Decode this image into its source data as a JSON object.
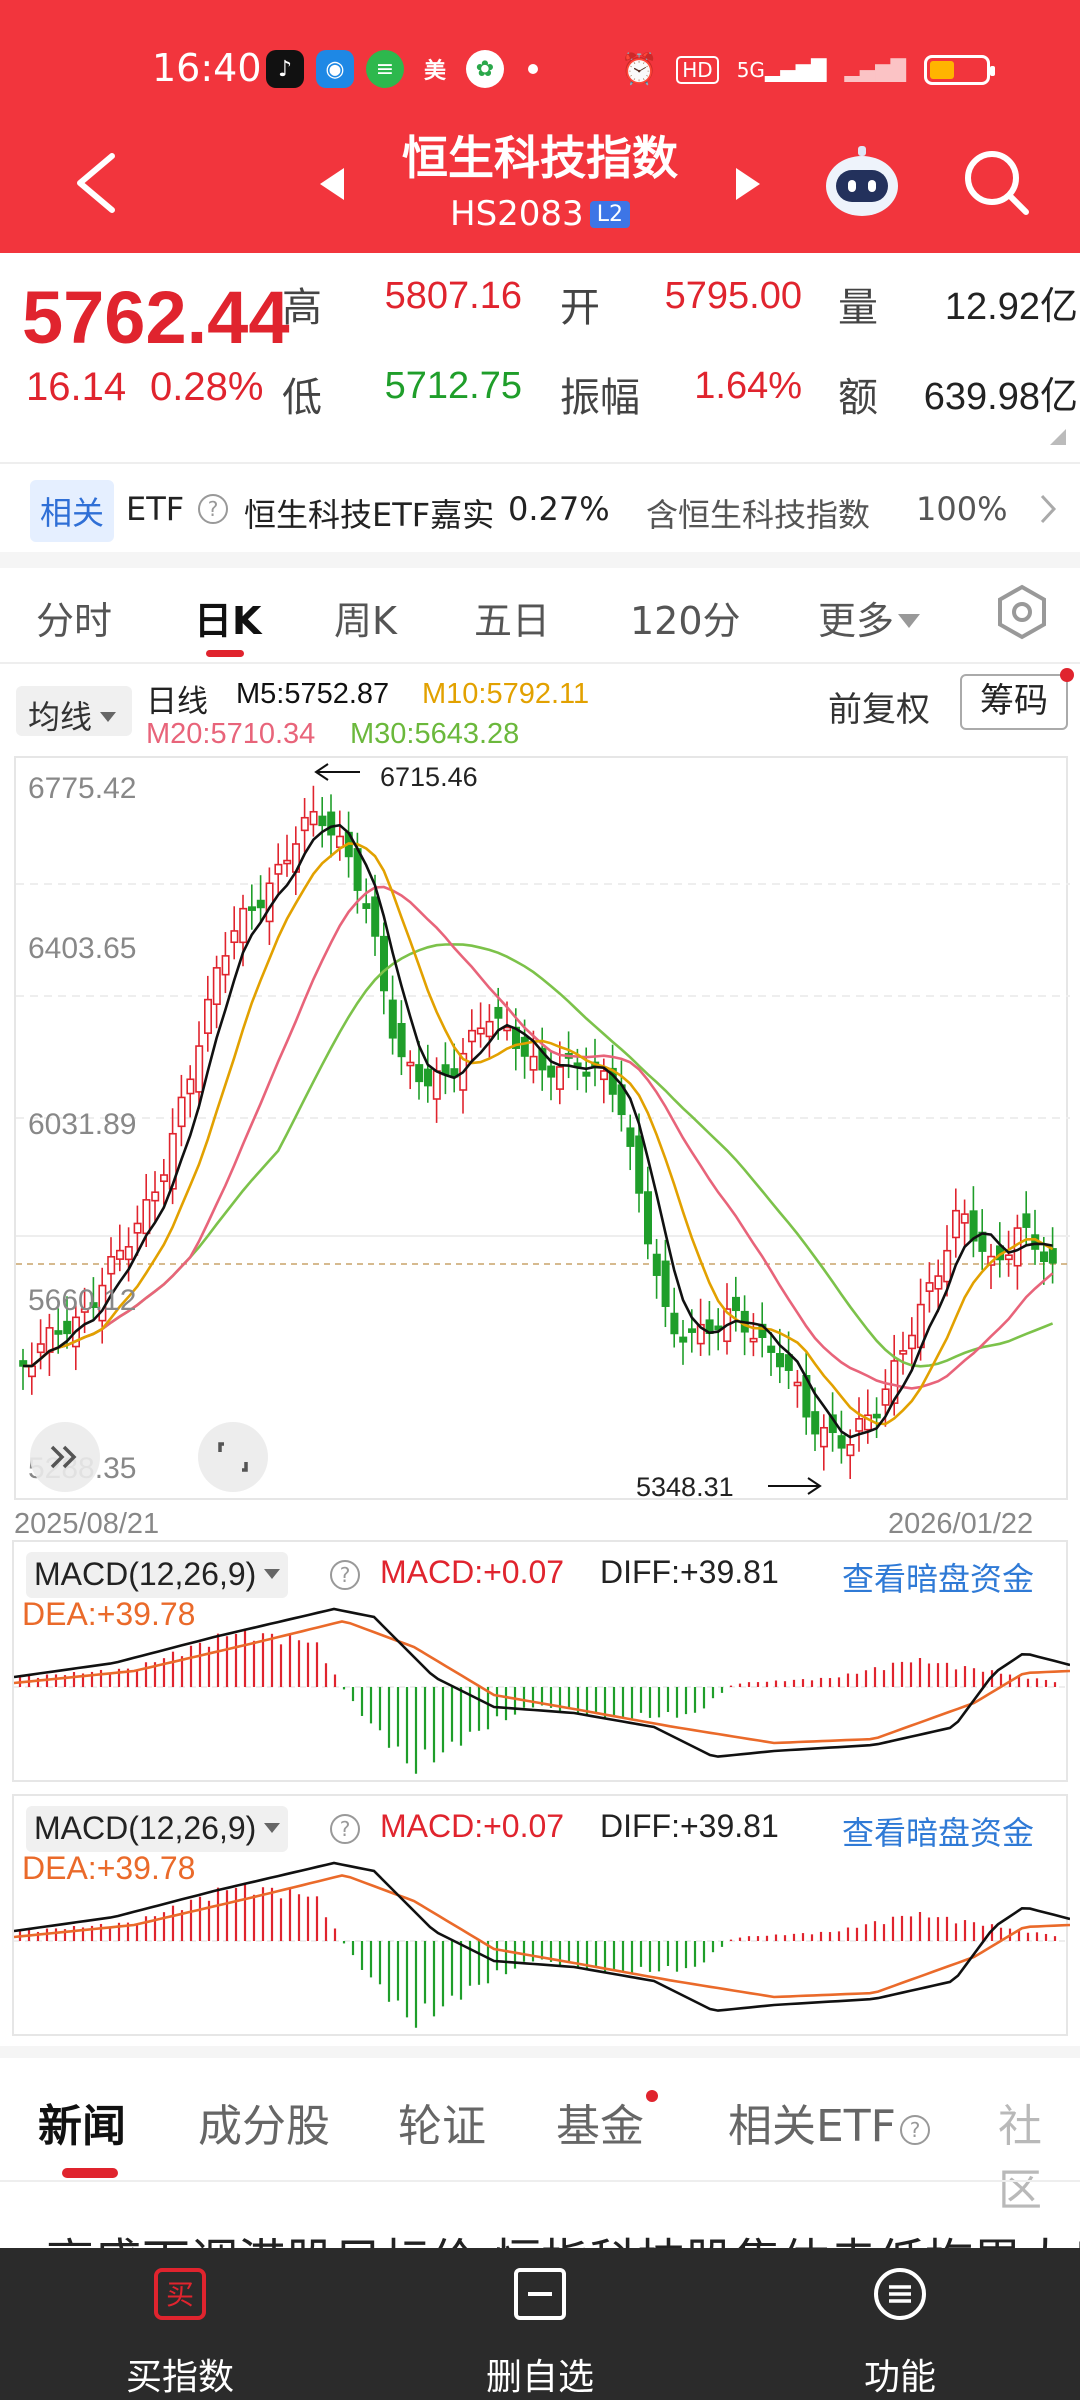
{
  "status_bar": {
    "time": "16:40",
    "hd_label": "HD",
    "net_label": "5G",
    "battery_level": 0.45
  },
  "header": {
    "title": "恒生科技指数",
    "code": "HS2083",
    "level_badge": "L2"
  },
  "quote": {
    "price": "5762.44",
    "change": "16.14",
    "change_pct": "0.28%",
    "high_label": "高",
    "high": "5807.16",
    "open_label": "开",
    "open": "5795.00",
    "volume_label": "量",
    "volume": "12.92亿",
    "low_label": "低",
    "low": "5712.75",
    "amplitude_label": "振幅",
    "amplitude": "1.64%",
    "amount_label": "额",
    "amount": "639.98亿"
  },
  "etf_strip": {
    "tag": "相关",
    "etf_label": "ETF",
    "etf_name": "恒生科技ETF嘉实",
    "etf_change": "0.27%",
    "holding_label": "含恒生科技指数",
    "holding_pct": "100%"
  },
  "period_tabs": [
    {
      "label": "分时"
    },
    {
      "label": "日K"
    },
    {
      "label": "周K"
    },
    {
      "label": "五日"
    },
    {
      "label": "120分"
    },
    {
      "label": "更多"
    }
  ],
  "ma_legend": {
    "button": "均线",
    "kind": "日线",
    "m5": "M5:5752.87",
    "m10": "M10:5792.11",
    "m20": "M20:5710.34",
    "m30": "M30:5643.28",
    "adjust": "前复权",
    "chips_button": "筹码"
  },
  "colors": {
    "header_red": "#f2353d",
    "up_red": "#e0242e",
    "down_green": "#1f9e2a",
    "m5": "#111111",
    "m10": "#e2a100",
    "m20": "#e8647a",
    "m30": "#7cc24a",
    "dea": "#ea6a2a"
  },
  "kline": {
    "y_ticks": [
      "6775.42",
      "6403.65",
      "6031.89",
      "5660.12",
      "5288.35"
    ],
    "high_marker": "6715.46",
    "low_marker": "5348.31",
    "start_date": "2025/08/21",
    "end_date": "2026/01/22"
  },
  "macd_panels": [
    {
      "selector": "MACD(12,26,9)",
      "macd": "MACD:+0.07",
      "diff": "DIFF:+39.81",
      "dea": "DEA:+39.78",
      "link": "查看暗盘资金"
    },
    {
      "selector": "MACD(12,26,9)",
      "macd": "MACD:+0.07",
      "diff": "DIFF:+39.81",
      "dea": "DEA:+39.78",
      "link": "查看暗盘资金"
    }
  ],
  "bottom_tabs": [
    {
      "label": "新闻"
    },
    {
      "label": "成分股"
    },
    {
      "label": "轮证"
    },
    {
      "label": "基金"
    },
    {
      "label": "相关ETF"
    },
    {
      "label": "社区"
    }
  ],
  "news_peek": "高盛下调港股目标价 恒指科技股集体走低拖累大盘",
  "bottom_nav": [
    {
      "label": "买指数",
      "icon_text": "买"
    },
    {
      "label": "删自选",
      "icon": "minus-square-icon"
    },
    {
      "label": "功能",
      "icon": "menu-circle-icon"
    }
  ]
}
